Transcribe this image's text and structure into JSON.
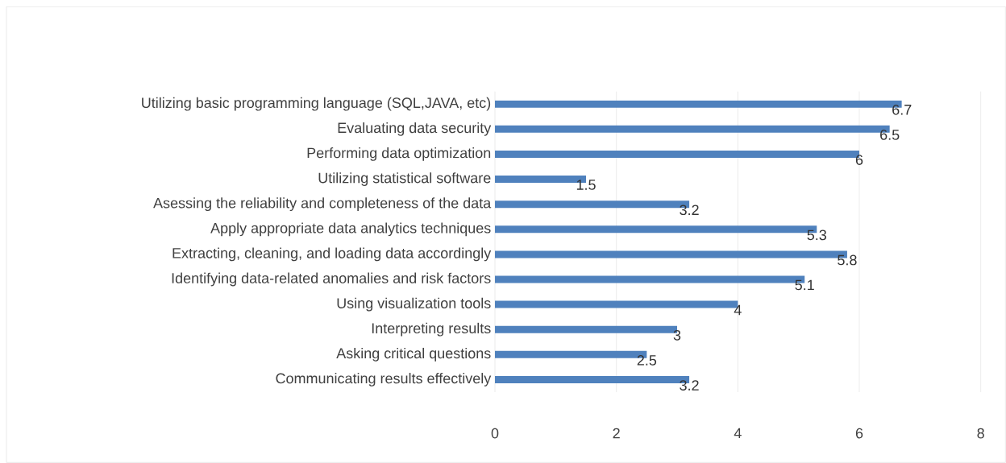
{
  "chart_data": {
    "type": "bar",
    "orientation": "horizontal",
    "categories": [
      "Utilizing basic programming language (SQL,JAVA, etc)",
      "Evaluating data security",
      "Performing data optimization",
      "Utilizing statistical software",
      "Asessing the reliability and completeness of the data",
      "Apply appropriate data analytics techniques",
      "Extracting, cleaning, and loading data accordingly",
      "Identifying data-related anomalies and risk factors",
      "Using visualization tools",
      "Interpreting results",
      "Asking critical questions",
      "Communicating results effectively"
    ],
    "values": [
      6.7,
      6.5,
      6,
      1.5,
      3.2,
      5.3,
      5.8,
      5.1,
      4,
      3,
      2.5,
      3.2
    ],
    "color": "#4f81bd",
    "xlim": [
      0,
      8
    ],
    "xticks": [
      0,
      2,
      4,
      6,
      8
    ],
    "grid": "x",
    "data_labels": true
  }
}
